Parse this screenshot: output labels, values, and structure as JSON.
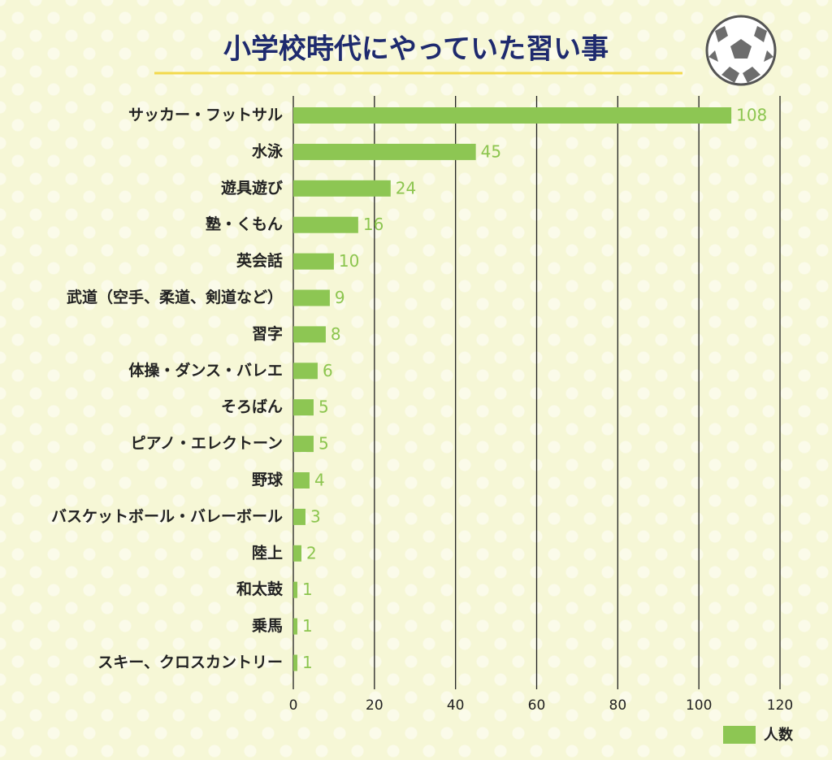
{
  "chart_data": {
    "type": "bar",
    "orientation": "horizontal",
    "title": "小学校時代にやっていた習い事",
    "categories": [
      "サッカー・フットサル",
      "水泳",
      "遊具遊び",
      "塾・くもん",
      "英会話",
      "武道（空手、柔道、剣道など）",
      "習字",
      "体操・ダンス・バレエ",
      "そろばん",
      "ピアノ・エレクトーン",
      "野球",
      "バスケットボール・バレーボール",
      "陸上",
      "和太鼓",
      "乗馬",
      "スキー、クロスカントリー"
    ],
    "series": [
      {
        "name": "人数",
        "color": "#8dc653",
        "values": [
          108,
          45,
          24,
          16,
          10,
          9,
          8,
          6,
          5,
          5,
          4,
          3,
          2,
          1,
          1,
          1
        ]
      }
    ],
    "xlim": [
      0,
      120
    ],
    "xticks": [
      0,
      20,
      40,
      60,
      80,
      100,
      120
    ],
    "grid": true,
    "legend": "bottom-right"
  }
}
